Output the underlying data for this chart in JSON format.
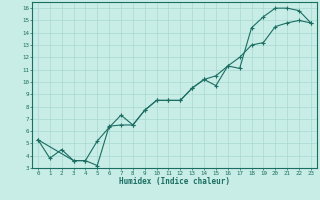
{
  "xlabel": "Humidex (Indice chaleur)",
  "xlim": [
    -0.5,
    23.5
  ],
  "ylim": [
    3,
    16.5
  ],
  "xticks": [
    0,
    1,
    2,
    3,
    4,
    5,
    6,
    7,
    8,
    9,
    10,
    11,
    12,
    13,
    14,
    15,
    16,
    17,
    18,
    19,
    20,
    21,
    22,
    23
  ],
  "yticks": [
    3,
    4,
    5,
    6,
    7,
    8,
    9,
    10,
    11,
    12,
    13,
    14,
    15,
    16
  ],
  "bg_color": "#c8ece6",
  "line_color": "#1a6e62",
  "grid_color": "#a8d8d0",
  "line1_x": [
    0,
    1,
    2,
    3,
    4,
    5,
    6,
    7,
    8,
    9,
    10,
    11,
    12,
    13,
    14,
    15,
    16,
    17,
    18,
    19,
    20,
    21,
    22,
    23
  ],
  "line1_y": [
    5.3,
    3.8,
    4.5,
    3.6,
    3.6,
    3.2,
    6.4,
    6.5,
    6.5,
    7.7,
    8.5,
    8.5,
    8.5,
    9.5,
    10.2,
    9.7,
    11.3,
    11.1,
    14.4,
    15.3,
    16.0,
    16.0,
    15.8,
    14.8
  ],
  "line2_x": [
    0,
    3,
    4,
    5,
    6,
    7,
    8,
    9,
    10,
    11,
    12,
    13,
    14,
    15,
    16,
    17,
    18,
    19,
    20,
    21,
    22,
    23
  ],
  "line2_y": [
    5.3,
    3.6,
    3.6,
    5.2,
    6.3,
    7.3,
    6.5,
    7.7,
    8.5,
    8.5,
    8.5,
    9.5,
    10.2,
    10.5,
    11.3,
    12.0,
    13.0,
    13.2,
    14.5,
    14.8,
    15.0,
    14.8
  ]
}
